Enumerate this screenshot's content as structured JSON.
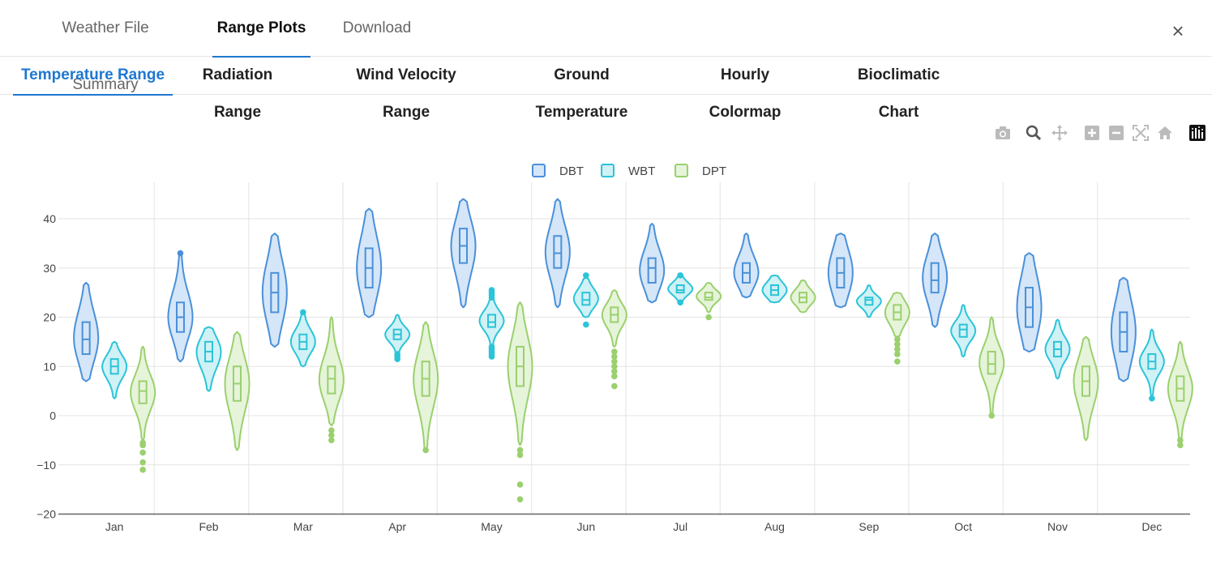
{
  "top_tabs": [
    {
      "label": "Weather File Summary"
    },
    {
      "label": "Range Plots"
    },
    {
      "label": "Download"
    }
  ],
  "close_label": "×",
  "sub_tabs": [
    {
      "label": "Temperature Range"
    },
    {
      "label": "Radiation Range"
    },
    {
      "label": "Wind Velocity Range"
    },
    {
      "label": "Ground Temperature"
    },
    {
      "label": "Hourly Colormap"
    },
    {
      "label": "Bioclimatic Chart"
    }
  ],
  "modebar": [
    "camera-icon",
    "zoom-icon",
    "pan-icon",
    "zoom-in-icon",
    "zoom-out-icon",
    "autoscale-icon",
    "reset-axes-icon",
    "plotly-logo-icon"
  ],
  "chart_data": {
    "type": "violin",
    "categories": [
      "Jan",
      "Feb",
      "Mar",
      "Apr",
      "May",
      "Jun",
      "Jul",
      "Aug",
      "Sep",
      "Oct",
      "Nov",
      "Dec"
    ],
    "ylim": [
      -20,
      47
    ],
    "yticks": [
      {
        "value": 40,
        "label": "40"
      },
      {
        "value": 30,
        "label": "30"
      },
      {
        "value": 20,
        "label": "20"
      },
      {
        "value": 10,
        "label": "10"
      },
      {
        "value": 0,
        "label": "0"
      },
      {
        "value": -10,
        "label": "−10"
      },
      {
        "value": -20,
        "label": "−20"
      }
    ],
    "legend_position": "top-center",
    "series": [
      {
        "name": "DBT",
        "color": "#4a90d9",
        "fill": "#d4e6f8",
        "stats": [
          {
            "min": 7,
            "q1": 12.5,
            "median": 15.5,
            "q3": 19,
            "max": 27
          },
          {
            "min": 11,
            "q1": 17,
            "median": 20,
            "q3": 23,
            "max": 33
          },
          {
            "min": 14,
            "q1": 21,
            "median": 25,
            "q3": 29,
            "max": 37
          },
          {
            "min": 20,
            "q1": 26,
            "median": 30,
            "q3": 34,
            "max": 42
          },
          {
            "min": 22,
            "q1": 31,
            "median": 34.5,
            "q3": 38,
            "max": 44
          },
          {
            "min": 22,
            "q1": 30,
            "median": 33,
            "q3": 36.5,
            "max": 44
          },
          {
            "min": 23,
            "q1": 27,
            "median": 30,
            "q3": 32,
            "max": 39
          },
          {
            "min": 24,
            "q1": 27,
            "median": 29,
            "q3": 31,
            "max": 37
          },
          {
            "min": 22,
            "q1": 26,
            "median": 29,
            "q3": 32,
            "max": 37
          },
          {
            "min": 18,
            "q1": 25,
            "median": 27.5,
            "q3": 31,
            "max": 37
          },
          {
            "min": 13,
            "q1": 18,
            "median": 22,
            "q3": 26,
            "max": 33
          },
          {
            "min": 7,
            "q1": 13,
            "median": 17,
            "q3": 21,
            "max": 28
          }
        ],
        "outliers": [
          [],
          [
            33
          ],
          [],
          [],
          [],
          [],
          [],
          [],
          [],
          [],
          [],
          []
        ]
      },
      {
        "name": "WBT",
        "color": "#2bc4d8",
        "fill": "#d0f1f5",
        "stats": [
          {
            "min": 3.5,
            "q1": 8.5,
            "median": 10,
            "q3": 11.5,
            "max": 15
          },
          {
            "min": 5,
            "q1": 11,
            "median": 13,
            "q3": 15,
            "max": 18
          },
          {
            "min": 10,
            "q1": 13.5,
            "median": 15,
            "q3": 16.5,
            "max": 21
          },
          {
            "min": 12,
            "q1": 15.5,
            "median": 16.5,
            "q3": 17.5,
            "max": 20.5
          },
          {
            "min": 14,
            "q1": 18,
            "median": 19,
            "q3": 20.5,
            "max": 25
          },
          {
            "min": 20,
            "q1": 22.5,
            "median": 23.5,
            "q3": 25,
            "max": 28
          },
          {
            "min": 23,
            "q1": 25,
            "median": 25.5,
            "q3": 26.5,
            "max": 28.5
          },
          {
            "min": 23,
            "q1": 24.5,
            "median": 25.5,
            "q3": 26.5,
            "max": 28.5
          },
          {
            "min": 20,
            "q1": 22.5,
            "median": 23.5,
            "q3": 24,
            "max": 26.5
          },
          {
            "min": 12,
            "q1": 16,
            "median": 17.5,
            "q3": 18.5,
            "max": 22.5
          },
          {
            "min": 7.5,
            "q1": 12,
            "median": 13.5,
            "q3": 15,
            "max": 19.5
          },
          {
            "min": 4,
            "q1": 9.5,
            "median": 11,
            "q3": 12.5,
            "max": 17.5
          }
        ],
        "outliers": [
          [],
          [],
          [
            21
          ],
          [
            11.5,
            12,
            12.5
          ],
          [
            12,
            12.5,
            13,
            13.5,
            14,
            24,
            24.5,
            25,
            25.5
          ],
          [
            18.5,
            28.5
          ],
          [
            23,
            28.5
          ],
          [],
          [],
          [],
          [],
          [
            3.5
          ]
        ]
      },
      {
        "name": "DPT",
        "color": "#9ad06e",
        "fill": "#e6f4da",
        "stats": [
          {
            "min": -5,
            "q1": 2.5,
            "median": 5,
            "q3": 7,
            "max": 14
          },
          {
            "min": -7,
            "q1": 3,
            "median": 6.5,
            "q3": 10,
            "max": 17
          },
          {
            "min": -2,
            "q1": 4.5,
            "median": 7.5,
            "q3": 10,
            "max": 20
          },
          {
            "min": -7,
            "q1": 4,
            "median": 7.5,
            "q3": 11,
            "max": 19
          },
          {
            "min": -6,
            "q1": 6,
            "median": 10,
            "q3": 14,
            "max": 23
          },
          {
            "min": 14,
            "q1": 19,
            "median": 20.5,
            "q3": 22,
            "max": 25.5
          },
          {
            "min": 21,
            "q1": 23.5,
            "median": 24,
            "q3": 25,
            "max": 27
          },
          {
            "min": 21,
            "q1": 23,
            "median": 24,
            "q3": 25,
            "max": 27.5
          },
          {
            "min": 16,
            "q1": 19.5,
            "median": 21,
            "q3": 22.5,
            "max": 25
          },
          {
            "min": 0,
            "q1": 8.5,
            "median": 10.5,
            "q3": 13,
            "max": 20
          },
          {
            "min": -5,
            "q1": 4,
            "median": 7,
            "q3": 10,
            "max": 16
          },
          {
            "min": -6,
            "q1": 3,
            "median": 5.5,
            "q3": 8,
            "max": 15
          }
        ],
        "outliers": [
          [
            -5.5,
            -6,
            -7.5,
            -9.5,
            -11
          ],
          [],
          [
            -3,
            -4,
            -5
          ],
          [
            -7
          ],
          [
            -7,
            -8,
            -14,
            -17
          ],
          [
            6,
            8,
            9,
            10,
            11,
            12,
            13
          ],
          [
            20
          ],
          [],
          [
            11,
            12.5,
            13.5,
            14.5,
            15.5
          ],
          [
            0
          ],
          [],
          [
            -5,
            -6
          ]
        ]
      }
    ]
  }
}
